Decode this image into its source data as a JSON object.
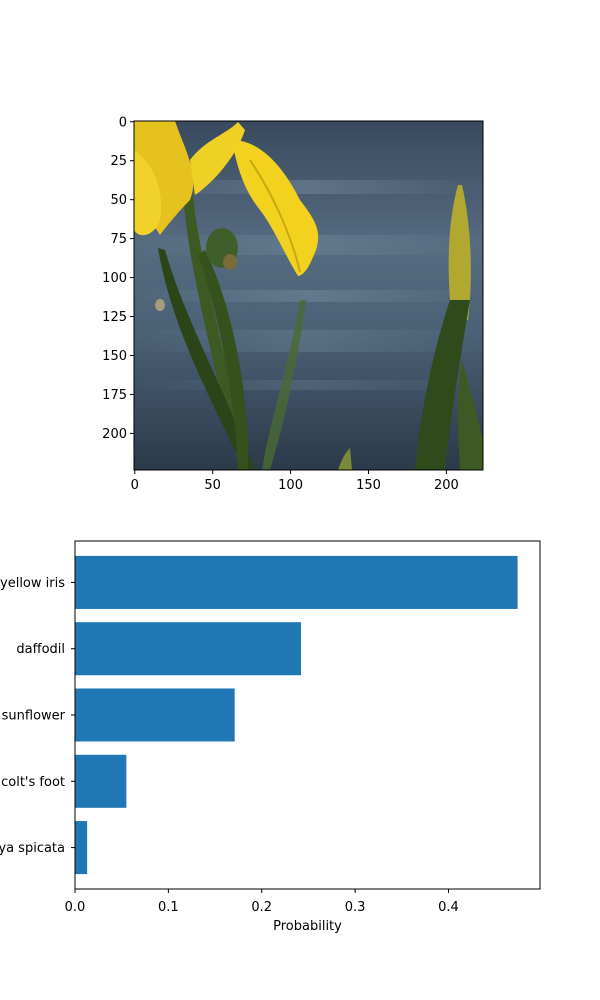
{
  "chart_data": [
    {
      "type": "image",
      "subject": "yellow iris flower against a blurred blue-grey water background",
      "x_ticks": [
        "0",
        "50",
        "100",
        "150",
        "200"
      ],
      "y_ticks": [
        "0",
        "25",
        "50",
        "75",
        "100",
        "125",
        "150",
        "175",
        "200"
      ],
      "xlim": [
        -0.5,
        223.5
      ],
      "ylim": [
        223.5,
        -0.5
      ]
    },
    {
      "type": "bar",
      "orientation": "horizontal",
      "categories": [
        "yellow iris",
        "daffodil",
        "sunflower",
        "colt's foot",
        "ya spicata"
      ],
      "values": [
        0.474,
        0.242,
        0.171,
        0.055,
        0.013
      ],
      "xlabel": "Probability",
      "x_ticks": [
        "0.0",
        "0.1",
        "0.2",
        "0.3",
        "0.4"
      ],
      "xlim": [
        0,
        0.498
      ],
      "bar_color": "#1f77b4"
    }
  ]
}
